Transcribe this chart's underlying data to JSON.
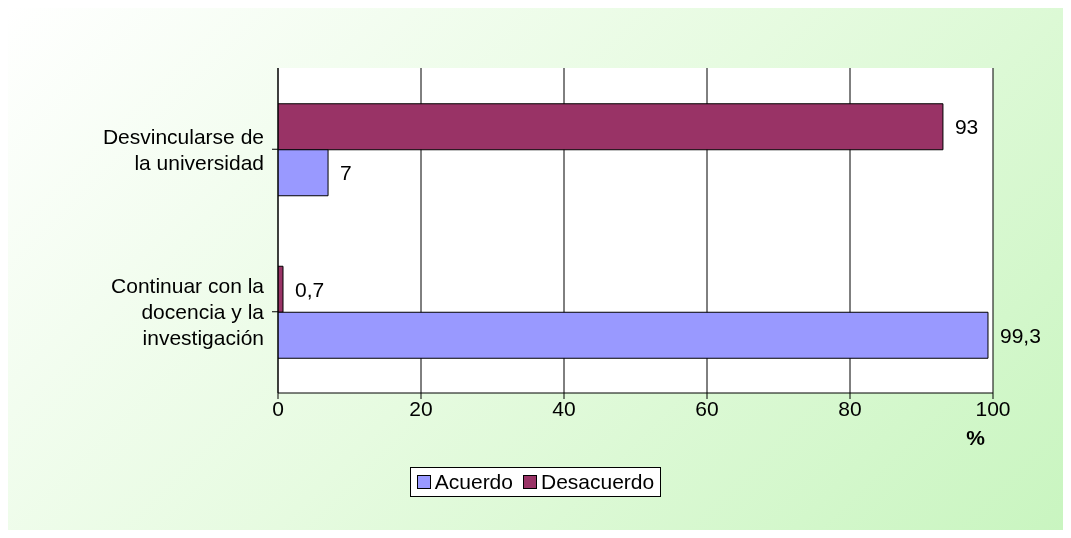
{
  "chart_data": {
    "type": "bar",
    "orientation": "horizontal",
    "categories": [
      "Desvincularse de la universidad",
      "Continuar con la docencia y la investigación"
    ],
    "series": [
      {
        "name": "Acuerdo",
        "color": "#9999ff",
        "values": [
          7,
          99.3
        ],
        "value_labels": [
          "7",
          "99,3"
        ]
      },
      {
        "name": "Desacuerdo",
        "color": "#993366",
        "values": [
          93,
          0.7
        ],
        "value_labels": [
          "93",
          "0,7"
        ]
      }
    ],
    "xlim": [
      0,
      100
    ],
    "xticks": [
      0,
      20,
      40,
      60,
      80,
      100
    ],
    "xlabel": "%",
    "grid": "x",
    "legend": "bottom"
  }
}
